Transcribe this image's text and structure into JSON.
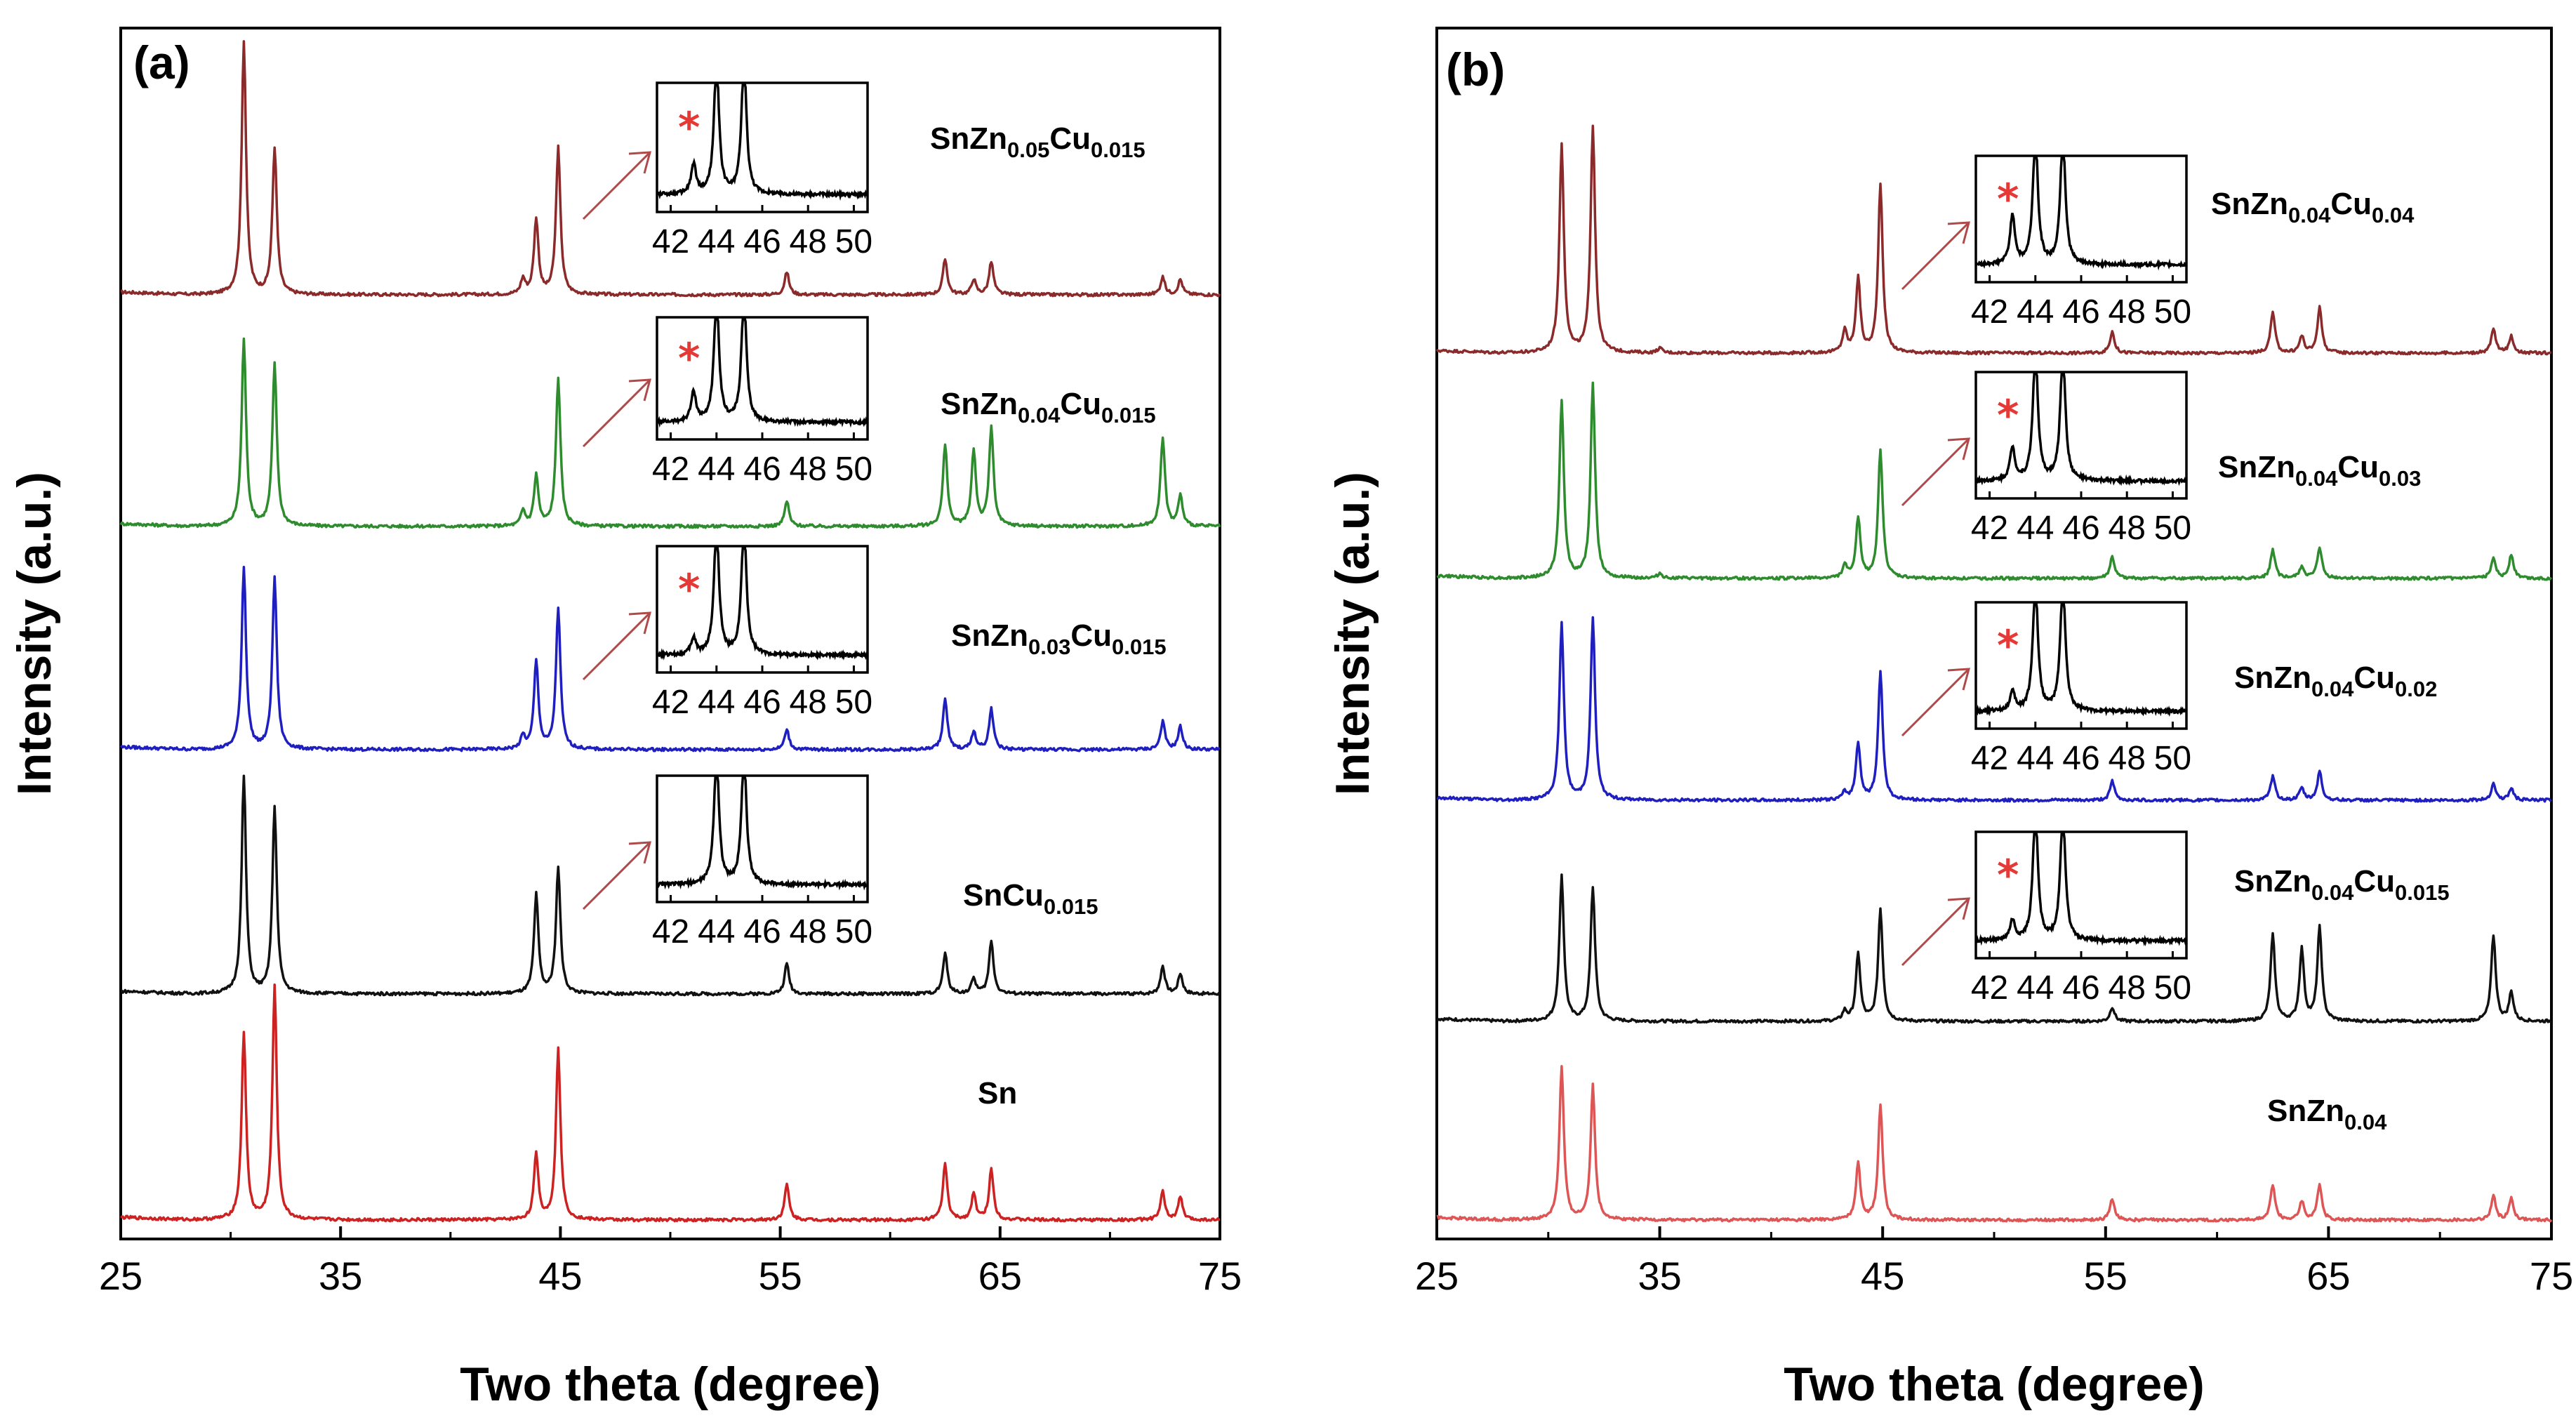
{
  "figure": {
    "left_panel_label": "(a)",
    "right_panel_label": "(b)"
  },
  "chart_data": [
    {
      "type": "line",
      "panel": "(a)",
      "xlabel": "Two theta (degree)",
      "ylabel": "Intensity (a.u.)",
      "xlim": [
        25,
        75
      ],
      "x_ticks": [
        "25",
        "35",
        "45",
        "55",
        "65",
        "75"
      ],
      "stack_scale": 1.0,
      "series": [
        {
          "name": "SnZn0.05Cu0.015",
          "label_main": "SnZn",
          "label_parts": [
            [
              "0.05",
              "Cu"
            ],
            [
              "0.015",
              ""
            ]
          ],
          "color": "#8b2a2a",
          "peaks": [
            [
              30.6,
              1.0
            ],
            [
              32.0,
              0.58
            ],
            [
              43.3,
              0.06
            ],
            [
              43.9,
              0.3
            ],
            [
              44.9,
              0.58
            ],
            [
              55.3,
              0.09
            ],
            [
              62.5,
              0.14
            ],
            [
              63.8,
              0.06
            ],
            [
              64.6,
              0.13
            ],
            [
              72.4,
              0.07
            ],
            [
              73.2,
              0.06
            ]
          ],
          "inset": {
            "x_ticks": [
              "42",
              "44",
              "46",
              "48",
              "50"
            ],
            "has_star": true,
            "peaks": [
              [
                43.0,
                0.26
              ],
              [
                44.0,
                1.2
              ],
              [
                45.2,
                1.2
              ]
            ]
          }
        },
        {
          "name": "SnZn0.04Cu0.015",
          "label_main": "SnZn",
          "label_parts": [
            [
              "0.04",
              "Cu"
            ],
            [
              "0.015",
              ""
            ]
          ],
          "color": "#2e8b2e",
          "peaks": [
            [
              30.6,
              0.74
            ],
            [
              32.0,
              0.64
            ],
            [
              43.3,
              0.06
            ],
            [
              43.9,
              0.2
            ],
            [
              44.9,
              0.59
            ],
            [
              55.3,
              0.1
            ],
            [
              62.5,
              0.32
            ],
            [
              63.8,
              0.3
            ],
            [
              64.6,
              0.39
            ],
            [
              72.4,
              0.35
            ],
            [
              73.2,
              0.12
            ]
          ],
          "inset": {
            "x_ticks": [
              "42",
              "44",
              "46",
              "48",
              "50"
            ],
            "has_star": true,
            "peaks": [
              [
                43.0,
                0.28
              ],
              [
                44.0,
                1.2
              ],
              [
                45.2,
                1.2
              ]
            ]
          }
        },
        {
          "name": "SnZn0.03Cu0.015",
          "label_main": "SnZn",
          "label_parts": [
            [
              "0.03",
              "Cu"
            ],
            [
              "0.015",
              ""
            ]
          ],
          "color": "#1f1fbf",
          "peaks": [
            [
              30.6,
              0.72
            ],
            [
              32.0,
              0.68
            ],
            [
              43.3,
              0.05
            ],
            [
              43.9,
              0.35
            ],
            [
              44.9,
              0.56
            ],
            [
              55.3,
              0.08
            ],
            [
              62.5,
              0.2
            ],
            [
              63.8,
              0.07
            ],
            [
              64.6,
              0.16
            ],
            [
              72.4,
              0.11
            ],
            [
              73.2,
              0.09
            ]
          ],
          "inset": {
            "x_ticks": [
              "42",
              "44",
              "46",
              "48",
              "50"
            ],
            "has_star": true,
            "peaks": [
              [
                43.0,
                0.15
              ],
              [
                44.0,
                1.2
              ],
              [
                45.2,
                1.2
              ]
            ]
          }
        },
        {
          "name": "SnCu0.015",
          "label_main": "SnCu",
          "label_parts": [
            [
              "0.015",
              ""
            ]
          ],
          "color": "#111111",
          "peaks": [
            [
              30.6,
              0.86
            ],
            [
              32.0,
              0.74
            ],
            [
              43.9,
              0.39
            ],
            [
              44.9,
              0.5
            ],
            [
              55.3,
              0.12
            ],
            [
              62.5,
              0.16
            ],
            [
              63.8,
              0.06
            ],
            [
              64.6,
              0.21
            ],
            [
              72.4,
              0.11
            ],
            [
              73.2,
              0.08
            ]
          ],
          "inset": {
            "x_ticks": [
              "42",
              "44",
              "46",
              "48",
              "50"
            ],
            "has_star": false,
            "peaks": [
              [
                44.0,
                1.2
              ],
              [
                45.2,
                1.2
              ]
            ]
          }
        },
        {
          "name": "Sn",
          "label_main": "Sn",
          "label_parts": [],
          "color": "#cc2222",
          "peaks": [
            [
              30.6,
              0.74
            ],
            [
              32.0,
              0.92
            ],
            [
              43.9,
              0.26
            ],
            [
              44.9,
              0.68
            ],
            [
              55.3,
              0.14
            ],
            [
              62.5,
              0.22
            ],
            [
              63.8,
              0.1
            ],
            [
              64.6,
              0.2
            ],
            [
              72.4,
              0.11
            ],
            [
              73.2,
              0.09
            ]
          ],
          "inset": null
        }
      ]
    },
    {
      "type": "line",
      "panel": "(b)",
      "xlabel": "Two theta (degree)",
      "ylabel": "Intensity (a.u.)",
      "xlim": [
        25,
        75
      ],
      "x_ticks": [
        "25",
        "35",
        "45",
        "55",
        "65",
        "75"
      ],
      "stack_scale": 1.0,
      "series": [
        {
          "name": "SnZn0.04Cu0.04",
          "label_main": "SnZn",
          "label_parts": [
            [
              "0.04",
              "Cu"
            ],
            [
              "0.04",
              ""
            ]
          ],
          "color": "#8b2a2a",
          "peaks": [
            [
              30.6,
              0.87
            ],
            [
              32.0,
              0.95
            ],
            [
              35.0,
              0.02
            ],
            [
              43.3,
              0.09
            ],
            [
              43.9,
              0.31
            ],
            [
              44.9,
              0.71
            ],
            [
              55.3,
              0.09
            ],
            [
              62.5,
              0.17
            ],
            [
              63.8,
              0.07
            ],
            [
              64.6,
              0.19
            ],
            [
              72.4,
              0.1
            ],
            [
              73.2,
              0.07
            ]
          ],
          "inset": {
            "x_ticks": [
              "42",
              "44",
              "46",
              "48",
              "50"
            ],
            "has_star": true,
            "peaks": [
              [
                43.0,
                0.45
              ],
              [
                44.0,
                1.2
              ],
              [
                45.2,
                1.2
              ]
            ]
          }
        },
        {
          "name": "SnZn0.04Cu0.03",
          "label_main": "SnZn",
          "label_parts": [
            [
              "0.04",
              "Cu"
            ],
            [
              "0.03",
              ""
            ]
          ],
          "color": "#2e8b2e",
          "peaks": [
            [
              30.6,
              0.74
            ],
            [
              32.0,
              0.81
            ],
            [
              35.0,
              0.02
            ],
            [
              43.3,
              0.05
            ],
            [
              43.9,
              0.25
            ],
            [
              44.9,
              0.54
            ],
            [
              55.3,
              0.09
            ],
            [
              62.5,
              0.12
            ],
            [
              63.8,
              0.05
            ],
            [
              64.6,
              0.13
            ],
            [
              72.4,
              0.09
            ],
            [
              73.2,
              0.1
            ]
          ],
          "inset": {
            "x_ticks": [
              "42",
              "44",
              "46",
              "48",
              "50"
            ],
            "has_star": true,
            "peaks": [
              [
                43.0,
                0.3
              ],
              [
                44.0,
                1.2
              ],
              [
                45.2,
                1.2
              ]
            ]
          }
        },
        {
          "name": "SnZn0.04Cu0.02",
          "label_main": "SnZn",
          "label_parts": [
            [
              "0.04",
              "Cu"
            ],
            [
              "0.02",
              ""
            ]
          ],
          "color": "#1f1fbf",
          "peaks": [
            [
              30.6,
              0.74
            ],
            [
              32.0,
              0.76
            ],
            [
              43.3,
              0.03
            ],
            [
              43.9,
              0.24
            ],
            [
              44.9,
              0.54
            ],
            [
              55.3,
              0.08
            ],
            [
              62.5,
              0.1
            ],
            [
              63.8,
              0.05
            ],
            [
              64.6,
              0.12
            ],
            [
              72.4,
              0.07
            ],
            [
              73.2,
              0.05
            ]
          ],
          "inset": {
            "x_ticks": [
              "42",
              "44",
              "46",
              "48",
              "50"
            ],
            "has_star": true,
            "peaks": [
              [
                43.0,
                0.17
              ],
              [
                44.0,
                1.2
              ],
              [
                45.2,
                1.2
              ]
            ]
          }
        },
        {
          "name": "SnZn0.04Cu0.015",
          "label_main": "SnZn",
          "label_parts": [
            [
              "0.04",
              "Cu"
            ],
            [
              "0.015",
              ""
            ]
          ],
          "color": "#111111",
          "peaks": [
            [
              30.6,
              0.61
            ],
            [
              32.0,
              0.56
            ],
            [
              43.3,
              0.04
            ],
            [
              43.9,
              0.28
            ],
            [
              44.9,
              0.47
            ],
            [
              55.3,
              0.06
            ],
            [
              62.5,
              0.36
            ],
            [
              63.8,
              0.3
            ],
            [
              64.6,
              0.39
            ],
            [
              72.4,
              0.36
            ],
            [
              73.2,
              0.12
            ]
          ],
          "inset": {
            "x_ticks": [
              "42",
              "44",
              "46",
              "48",
              "50"
            ],
            "has_star": true,
            "peaks": [
              [
                43.0,
                0.18
              ],
              [
                44.0,
                1.2
              ],
              [
                45.2,
                1.2
              ]
            ]
          }
        },
        {
          "name": "SnZn0.04",
          "label_main": "SnZn",
          "label_parts": [
            [
              "0.04",
              ""
            ]
          ],
          "color": "#dd5555",
          "peaks": [
            [
              30.6,
              0.64
            ],
            [
              32.0,
              0.56
            ],
            [
              43.9,
              0.24
            ],
            [
              44.9,
              0.48
            ],
            [
              55.3,
              0.09
            ],
            [
              62.5,
              0.15
            ],
            [
              63.8,
              0.08
            ],
            [
              64.6,
              0.15
            ],
            [
              72.4,
              0.1
            ],
            [
              73.2,
              0.09
            ]
          ],
          "inset": null
        }
      ]
    }
  ]
}
